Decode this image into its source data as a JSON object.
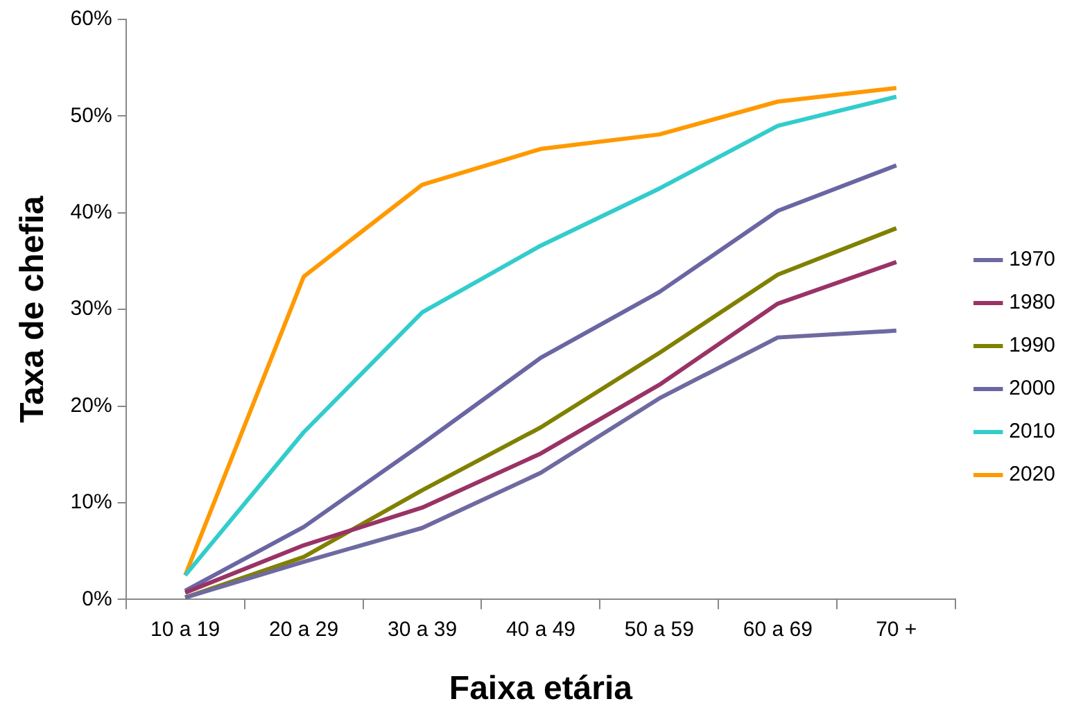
{
  "chart_data": {
    "type": "line",
    "xlabel": "Faixa etária",
    "ylabel": "Taxa de chefia",
    "categories": [
      "10 a 19",
      "20 a 29",
      "30 a 39",
      "40 a 49",
      "50 a 59",
      "60 a 69",
      "70 +"
    ],
    "series": [
      {
        "name": "1970",
        "color": "#6e6aa0",
        "values": [
          0.2,
          3.9,
          7.4,
          13.1,
          20.8,
          27.1,
          27.8
        ]
      },
      {
        "name": "1980",
        "color": "#993366",
        "values": [
          0.7,
          5.6,
          9.5,
          15.1,
          22.2,
          30.6,
          34.9
        ]
      },
      {
        "name": "1990",
        "color": "#808000",
        "values": [
          0.2,
          4.4,
          11.3,
          17.8,
          25.5,
          33.6,
          38.4
        ]
      },
      {
        "name": "2000",
        "color": "#6a66a3",
        "values": [
          0.9,
          7.5,
          16.1,
          25.0,
          31.8,
          40.2,
          44.9
        ]
      },
      {
        "name": "2010",
        "color": "#33cccc",
        "values": [
          2.5,
          17.3,
          29.7,
          36.6,
          42.5,
          49.0,
          52.0
        ]
      },
      {
        "name": "2020",
        "color": "#ff9900",
        "values": [
          2.5,
          33.4,
          42.9,
          46.6,
          48.1,
          51.5,
          52.9
        ]
      }
    ],
    "ylim": [
      0,
      60
    ],
    "yticks": [
      {
        "value": 0,
        "label": "0%"
      },
      {
        "value": 10,
        "label": "10%"
      },
      {
        "value": 20,
        "label": "20%"
      },
      {
        "value": 30,
        "label": "30%"
      },
      {
        "value": 40,
        "label": "40%"
      },
      {
        "value": 50,
        "label": "50%"
      },
      {
        "value": 60,
        "label": "60%"
      }
    ],
    "grid": false,
    "legend": "right",
    "marker": "none",
    "line_style": "solid"
  }
}
